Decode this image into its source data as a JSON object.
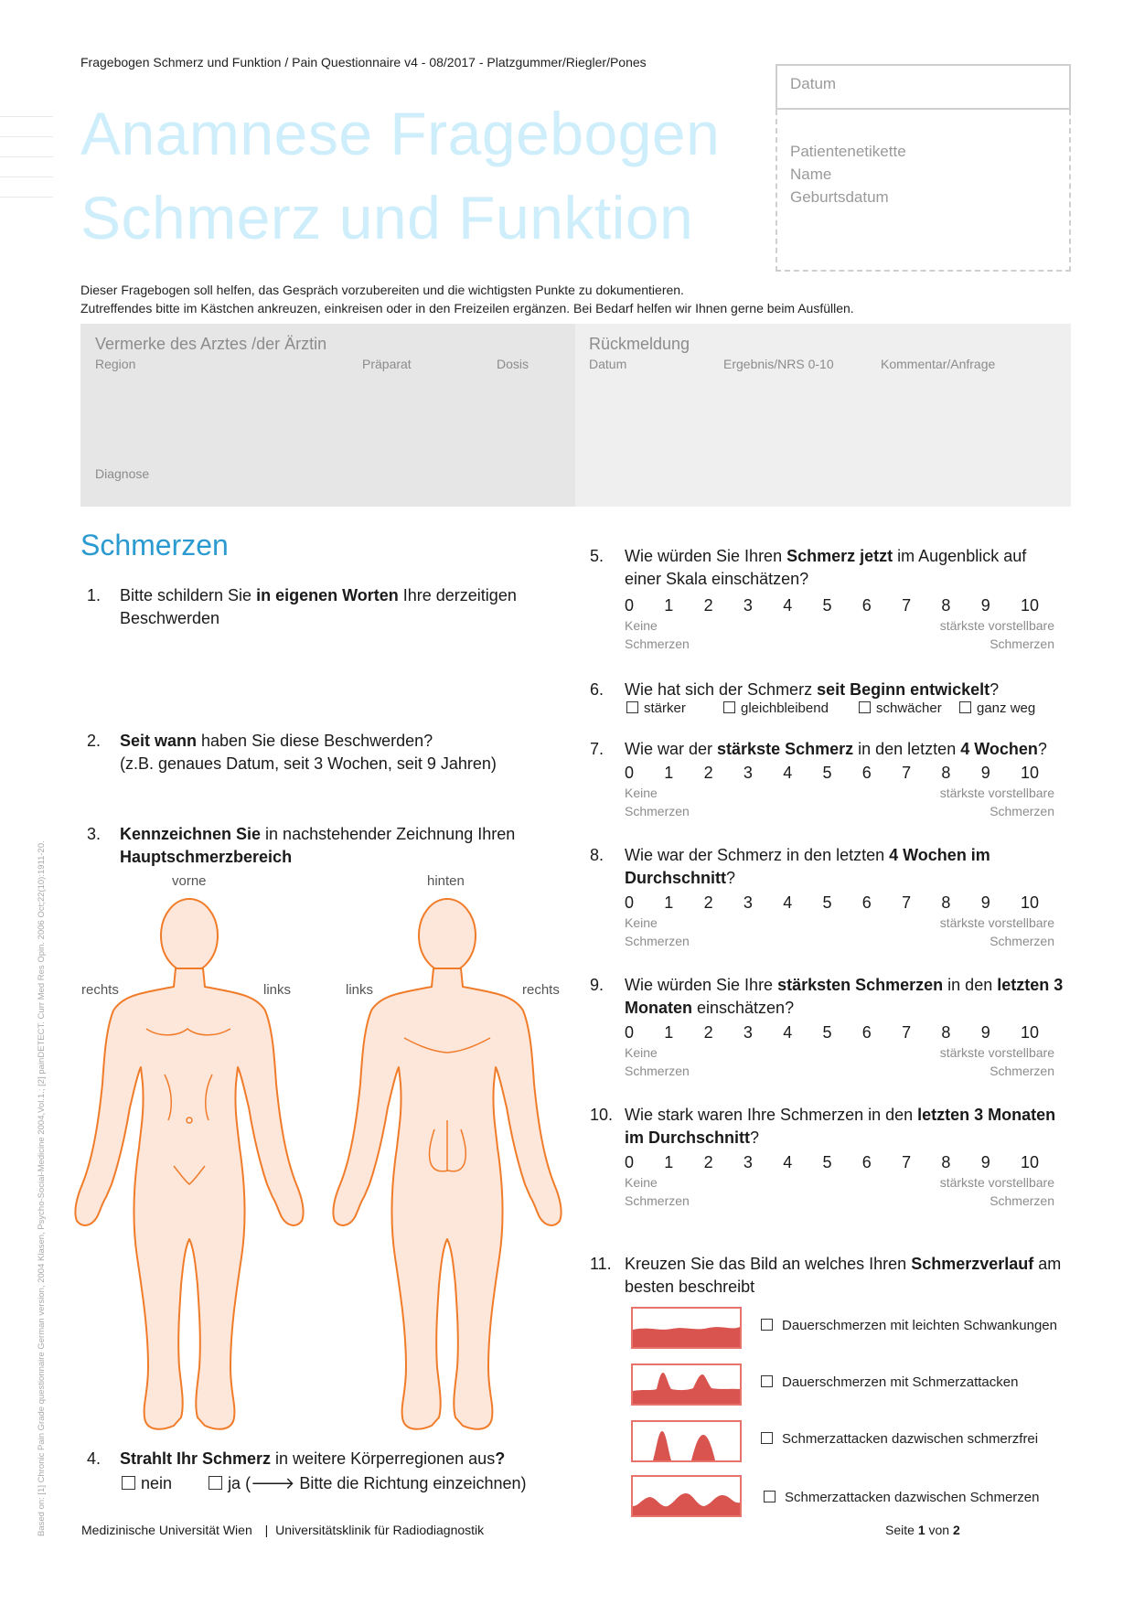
{
  "header": {
    "line": "Fragebogen Schmerz und Funktion / Pain Questionnaire v4 - 08/2017  - Platzgummer/Riegler/Pones",
    "title_line1": "Anamnese Fragebogen",
    "title_line2": "Schmerz und Funktion"
  },
  "patient_box": {
    "date_label": "Datum",
    "label_line1": "Patientenetikette",
    "label_line2": "Name",
    "label_line3": "Geburtsdatum"
  },
  "intro": {
    "line1": "Dieser Fragebogen soll helfen, das Gespräch vorzubereiten und die wichtigsten Punkte zu dokumentieren.",
    "line2": "Zutreffendes bitte im Kästchen ankreuzen, einkreisen oder in den Freizeilen ergänzen. Bei Bedarf helfen wir Ihnen gerne beim Ausfüllen."
  },
  "doctor_panel": {
    "title": "Vermerke des Arztes /der Ärztin",
    "col_region": "Region",
    "col_praeparat": "Präparat",
    "col_dosis": "Dosis",
    "diagnose": "Diagnose"
  },
  "feedback_panel": {
    "title": "Rückmeldung",
    "col_datum": "Datum",
    "col_ergebnis": "Ergebnis/NRS 0-10",
    "col_kommentar": "Kommentar/Anfrage"
  },
  "section_title": "Schmerzen",
  "q1": {
    "num": "1.",
    "pre": "Bitte schildern Sie ",
    "bold": "in eigenen Worten",
    "post": " Ihre derzeitigen",
    "line2": "Beschwerden"
  },
  "q2": {
    "num": "2.",
    "bold": "Seit wann",
    "post": " haben Sie diese Beschwerden?",
    "line2": "(z.B. genaues Datum, seit 3 Wochen, seit 9 Jahren)"
  },
  "q3": {
    "num": "3.",
    "bold": "Kennzeichnen Sie",
    "post": " in nachstehender Zeichnung Ihren",
    "line2_bold": "Hauptschmerzbereich"
  },
  "body_labels": {
    "vorne": "vorne",
    "hinten": "hinten",
    "rechts_front": "rechts",
    "links_front": "links",
    "links_back": "links",
    "rechts_back": "rechts"
  },
  "q4": {
    "num": "4.",
    "bold": "Strahlt Ihr Schmerz",
    "post": " in weitere Körperregionen aus",
    "qmark": "?",
    "opt_nein": "nein",
    "opt_ja": "ja (🡒 Bitte die Richtung einzeichnen)"
  },
  "scale": {
    "numbers": [
      "0",
      "1",
      "2",
      "3",
      "4",
      "5",
      "6",
      "7",
      "8",
      "9",
      "10"
    ],
    "low1": "Keine",
    "low2": "Schmerzen",
    "high1": "stärkste vorstellbare",
    "high2": "Schmerzen"
  },
  "q5": {
    "num": "5.",
    "pre": "Wie würden Sie Ihren ",
    "bold": "Schmerz jetzt",
    "post": " im Augenblick auf",
    "line2": "einer Skala einschätzen?"
  },
  "q6": {
    "num": "6.",
    "pre": "Wie hat sich der Schmerz ",
    "bold": "seit Beginn entwickelt",
    "post": "?",
    "opt1": "stärker",
    "opt2": "gleichbleibend",
    "opt3": "schwächer",
    "opt4": "ganz weg"
  },
  "q7": {
    "num": "7.",
    "pre": "Wie war der ",
    "bold": "stärkste Schmerz",
    "mid": " in den letzten ",
    "bold2": "4 Wochen",
    "post": "?"
  },
  "q8": {
    "num": "8.",
    "pre": "Wie war der Schmerz in den letzten ",
    "bold": "4 Wochen im",
    "line2_bold": "Durchschnitt",
    "line2_post": "?"
  },
  "q9": {
    "num": "9.",
    "pre": "Wie würden Sie Ihre ",
    "bold": "stärksten Schmerzen",
    "mid": " in den ",
    "bold2": "letzten 3",
    "line2_bold": "Monaten",
    "line2_post": " einschätzen?"
  },
  "q10": {
    "num": "10.",
    "pre": "Wie stark waren Ihre Schmerzen in den ",
    "bold": "letzten 3 Monaten",
    "line2_bold": "im Durchschnitt",
    "line2_post": "?"
  },
  "q11": {
    "num": "11.",
    "pre": "Kreuzen Sie das Bild an welches Ihren ",
    "bold": "Schmerzverlauf",
    "post": " am",
    "line2": "besten beschreibt",
    "options": [
      "Dauerschmerzen mit leichten Schwankungen",
      "Dauerschmerzen mit Schmerzattacken",
      "Schmerzattacken dazwischen schmerzfrei",
      "Schmerzattacken dazwischen Schmerzen"
    ]
  },
  "footer": {
    "left": "Medizinische Universität Wien",
    "sep": "|",
    "right": "Universitätsklinik für Radiodiagnostik",
    "page_pre": "Seite ",
    "page_num": "1",
    "page_mid": " von ",
    "page_total": "2"
  },
  "side_note": "Based on: [1] Chronic Pain Grade questionnaire German version, 2004 Klasen, Psycho-Social-Medicine 2004,Vol.1.; [2] painDETECT. Curr Med Res Opin. 2006 Oct;22(10):1911-20.",
  "colors": {
    "title": "#cdeefa",
    "section": "#2a9ad0",
    "body_stroke": "#f07c2a",
    "body_fill": "#fde6da",
    "graph_fill": "#d9534f"
  }
}
